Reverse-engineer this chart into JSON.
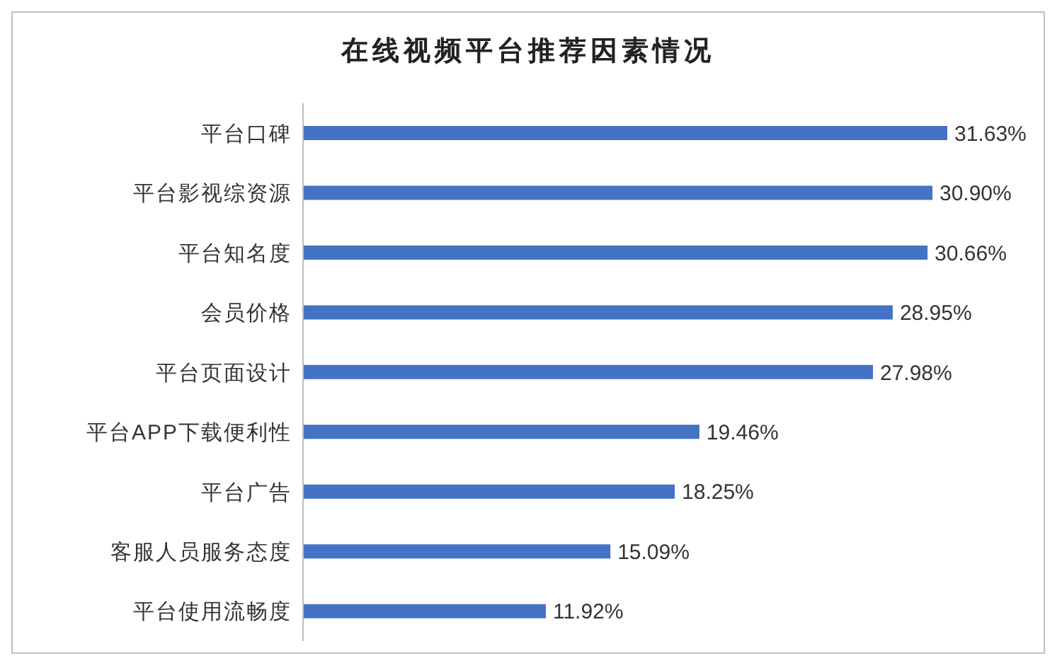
{
  "chart_data": {
    "type": "bar",
    "orientation": "horizontal",
    "title": "在线视频平台推荐因素情况",
    "categories": [
      "平台口碑",
      "平台影视综资源",
      "平台知名度",
      "会员价格",
      "平台页面设计",
      "平台APP下载便利性",
      "平台广告",
      "客服人员服务态度",
      "平台使用流畅度"
    ],
    "values": [
      31.63,
      30.9,
      30.66,
      28.95,
      27.98,
      19.46,
      18.25,
      15.09,
      11.92
    ],
    "value_labels": [
      "31.63%",
      "30.90%",
      "30.66%",
      "28.95%",
      "27.98%",
      "19.46%",
      "18.25%",
      "15.09%",
      "11.92%"
    ],
    "color": "#4472c4"
  }
}
